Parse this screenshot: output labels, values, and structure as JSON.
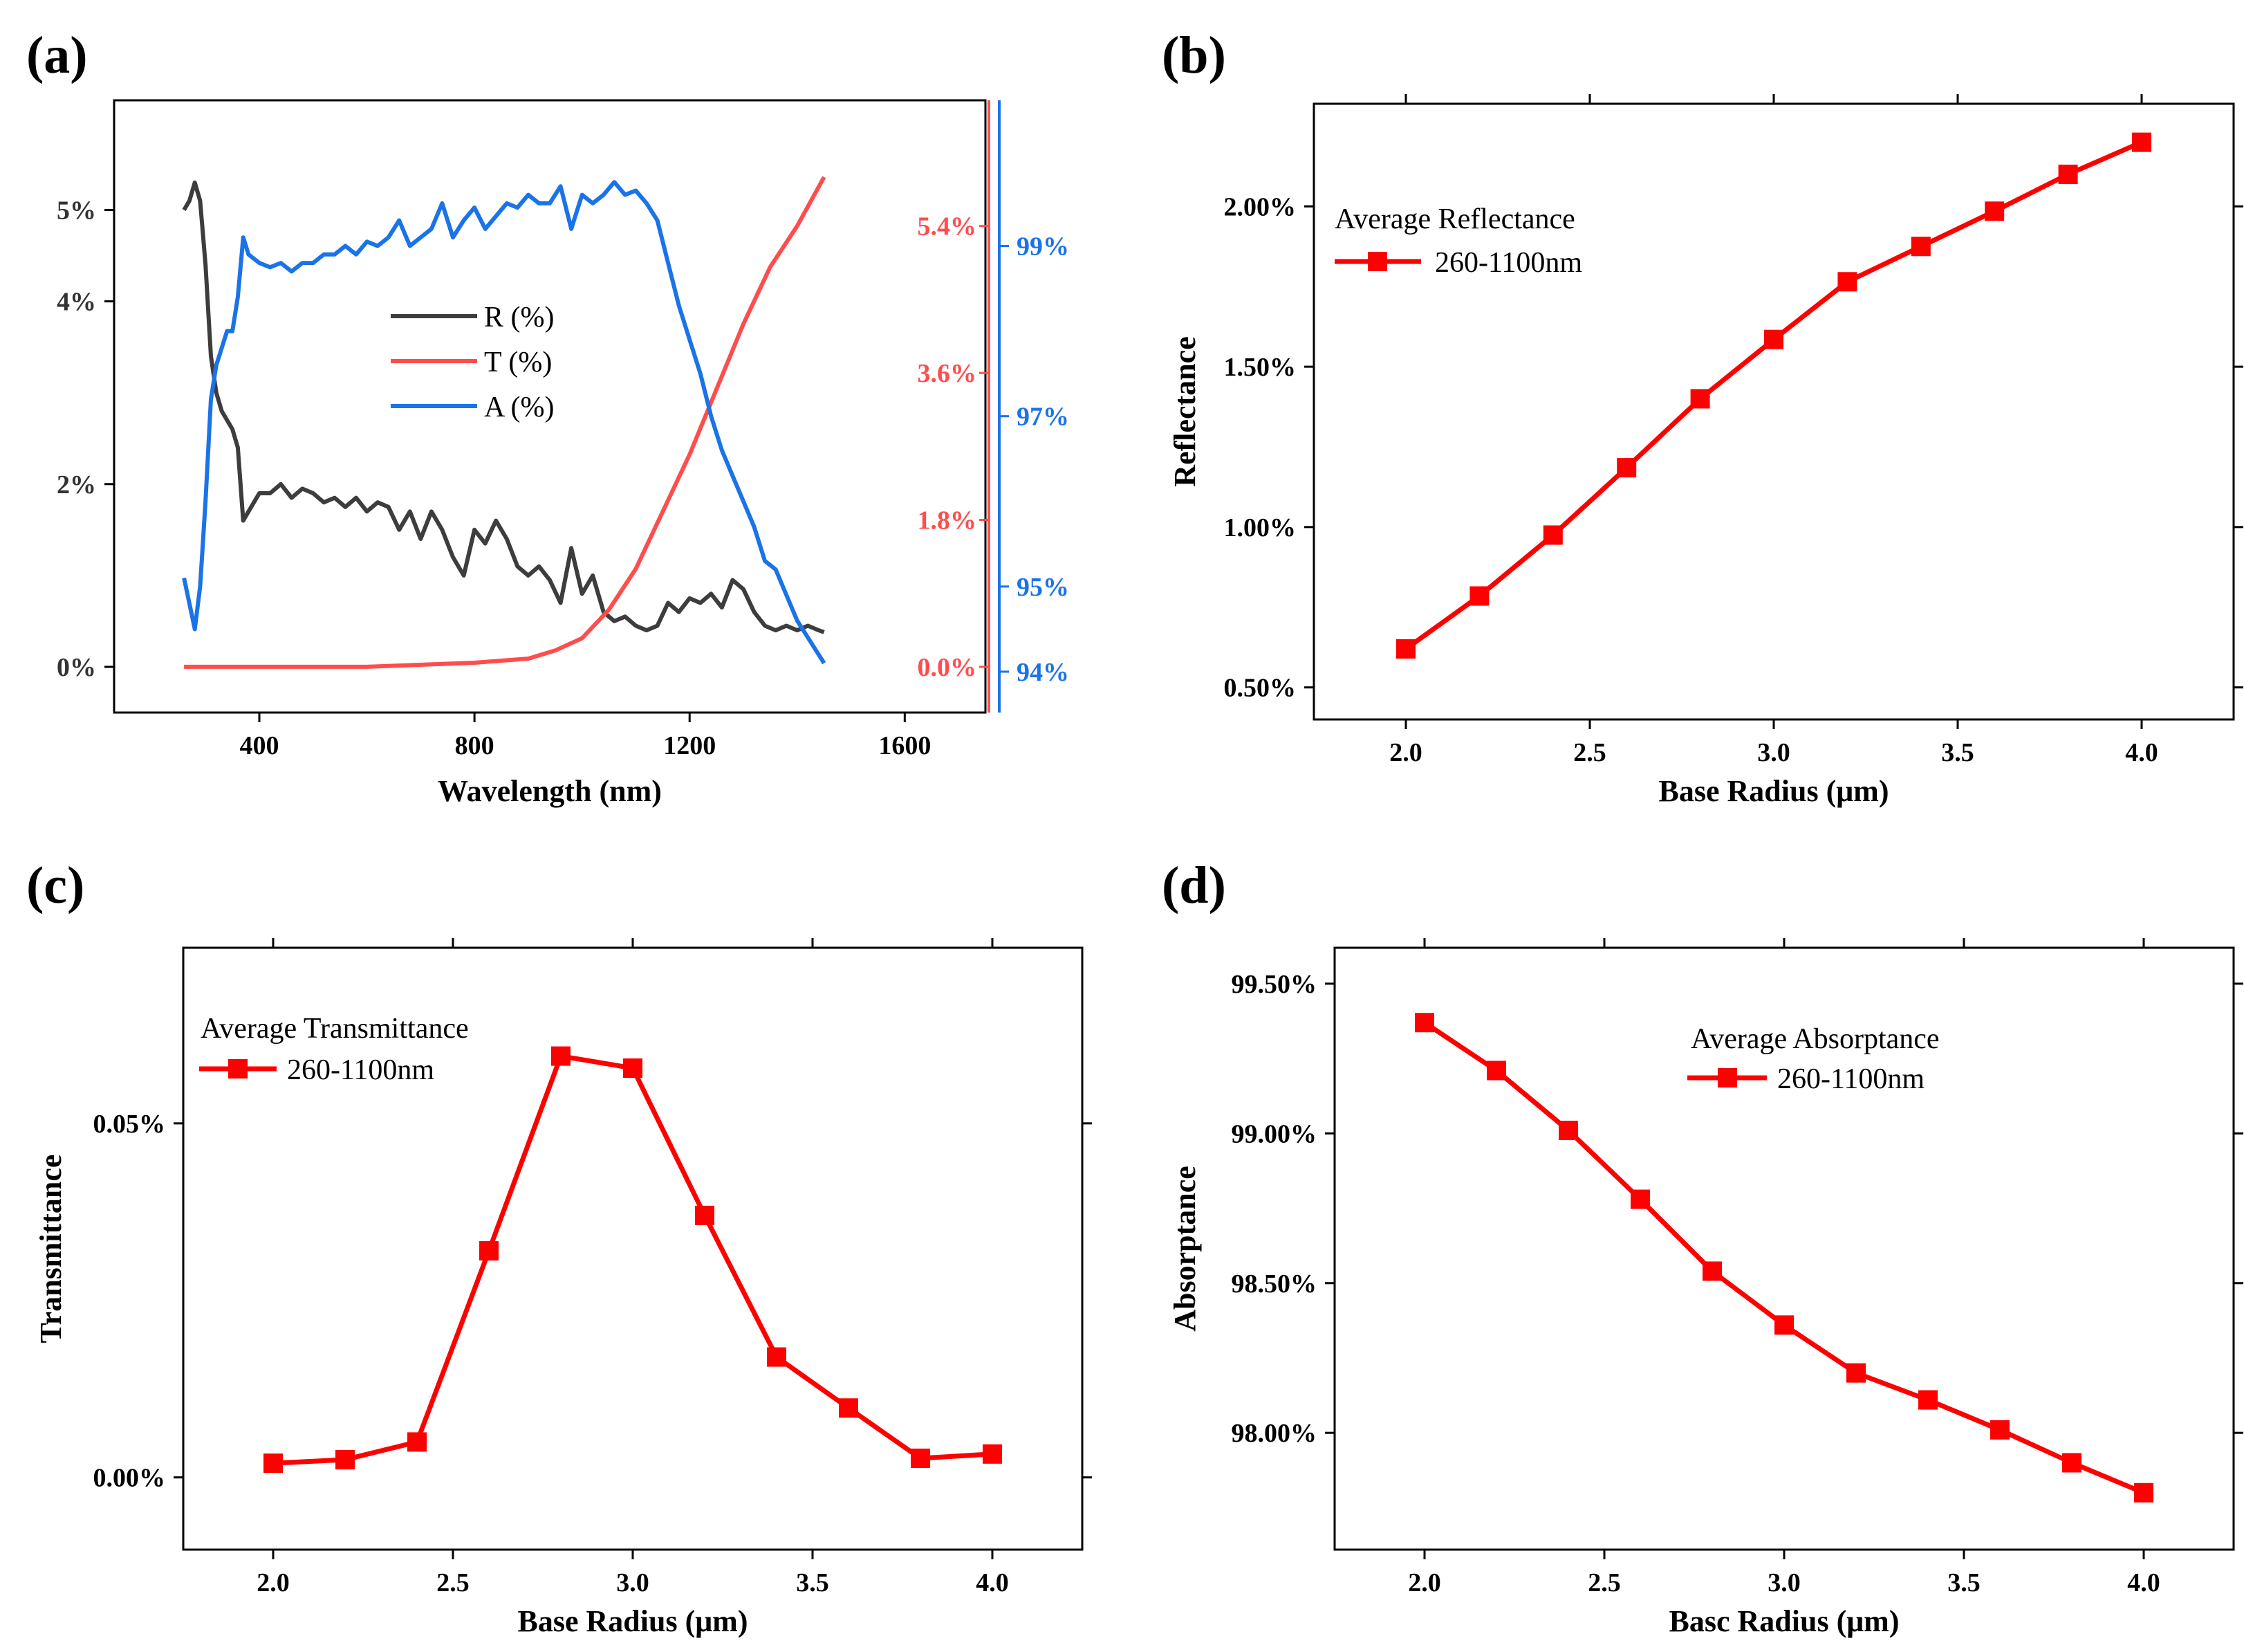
{
  "colors": {
    "reflectance": "#3d3d3d",
    "transmittance": "#ff4d4d",
    "absorptance": "#1a73e8",
    "marker_series": "#ff0000",
    "axis": "#000000"
  },
  "chart_data": [
    {
      "panel": "(a)",
      "type": "line",
      "xlabel": "Wavelength (nm)",
      "xlim": [
        130,
        1750
      ],
      "x_ticks": [
        "400",
        "800",
        "1200",
        "1600"
      ],
      "y_left": {
        "ylim": [
          -0.5,
          6.2
        ],
        "ticks": [
          "0%",
          "2%",
          "4%",
          "5%"
        ]
      },
      "y_right_red": {
        "ylim": [
          -0.56,
          6.94
        ],
        "ticks": [
          "0.0%",
          "1.8%",
          "3.6%",
          "5.4%"
        ]
      },
      "y_right_blue": {
        "ylim": [
          93.52,
          100.71
        ],
        "ticks": [
          "94%",
          "95%",
          "97%",
          "99%"
        ]
      },
      "legend": [
        "R (%)",
        "T (%)",
        "A (%)"
      ],
      "legend_position": "center",
      "series": [
        {
          "name": "R (%)",
          "axis": "left",
          "x": [
            260,
            270,
            280,
            290,
            300,
            310,
            320,
            330,
            340,
            350,
            360,
            370,
            380,
            400,
            420,
            440,
            460,
            480,
            500,
            520,
            540,
            560,
            580,
            600,
            620,
            640,
            660,
            680,
            700,
            720,
            740,
            760,
            780,
            800,
            820,
            840,
            860,
            880,
            900,
            920,
            940,
            960,
            980,
            1000,
            1020,
            1040,
            1060,
            1080,
            1100,
            1120,
            1140,
            1160,
            1180,
            1200,
            1220,
            1240,
            1260,
            1280,
            1300,
            1320,
            1340,
            1360,
            1380,
            1400,
            1420,
            1440,
            1450
          ],
          "values": [
            5.0,
            5.1,
            5.3,
            5.1,
            4.4,
            3.4,
            3.0,
            2.8,
            2.7,
            2.6,
            2.4,
            1.6,
            1.7,
            1.9,
            1.9,
            2.0,
            1.85,
            1.95,
            1.9,
            1.8,
            1.85,
            1.75,
            1.85,
            1.7,
            1.8,
            1.75,
            1.5,
            1.7,
            1.4,
            1.7,
            1.5,
            1.2,
            1.0,
            1.5,
            1.35,
            1.6,
            1.4,
            1.1,
            1.0,
            1.1,
            0.95,
            0.7,
            1.3,
            0.8,
            1.0,
            0.6,
            0.5,
            0.55,
            0.45,
            0.4,
            0.45,
            0.7,
            0.6,
            0.75,
            0.7,
            0.8,
            0.65,
            0.95,
            0.85,
            0.6,
            0.45,
            0.4,
            0.45,
            0.4,
            0.45,
            0.4,
            0.38
          ]
        },
        {
          "name": "T (%)",
          "axis": "right_red",
          "x": [
            260,
            400,
            600,
            800,
            900,
            950,
            1000,
            1050,
            1100,
            1150,
            1200,
            1250,
            1300,
            1350,
            1400,
            1450
          ],
          "values": [
            0.0,
            0.0,
            0.0,
            0.05,
            0.1,
            0.2,
            0.35,
            0.7,
            1.2,
            1.9,
            2.6,
            3.4,
            4.2,
            4.9,
            5.4,
            6.0
          ]
        },
        {
          "name": "A (%)",
          "axis": "right_blue",
          "x": [
            260,
            270,
            280,
            290,
            300,
            310,
            320,
            330,
            340,
            350,
            360,
            370,
            380,
            400,
            420,
            440,
            460,
            480,
            500,
            520,
            540,
            560,
            580,
            600,
            620,
            640,
            660,
            680,
            700,
            720,
            740,
            760,
            780,
            800,
            820,
            840,
            860,
            880,
            900,
            920,
            940,
            960,
            980,
            1000,
            1020,
            1040,
            1060,
            1080,
            1100,
            1120,
            1140,
            1160,
            1180,
            1200,
            1220,
            1240,
            1260,
            1280,
            1300,
            1320,
            1340,
            1360,
            1380,
            1400,
            1420,
            1440,
            1450
          ],
          "values": [
            95.1,
            94.8,
            94.5,
            95.0,
            96.0,
            97.2,
            97.6,
            97.8,
            98.0,
            98.0,
            98.4,
            99.1,
            98.9,
            98.8,
            98.75,
            98.8,
            98.7,
            98.8,
            98.8,
            98.9,
            98.9,
            99.0,
            98.9,
            99.05,
            99.0,
            99.1,
            99.3,
            99.0,
            99.1,
            99.2,
            99.5,
            99.1,
            99.3,
            99.45,
            99.2,
            99.35,
            99.5,
            99.45,
            99.6,
            99.5,
            99.5,
            99.7,
            99.2,
            99.6,
            99.5,
            99.6,
            99.75,
            99.6,
            99.65,
            99.5,
            99.3,
            98.8,
            98.3,
            97.9,
            97.5,
            97.0,
            96.6,
            96.3,
            96.0,
            95.7,
            95.3,
            95.2,
            94.9,
            94.6,
            94.4,
            94.2,
            94.1
          ]
        }
      ]
    },
    {
      "panel": "(b)",
      "type": "line",
      "xlabel": "Base Radius (μm)",
      "ylabel": "Reflectance",
      "xlim": [
        1.75,
        4.25
      ],
      "ylim": [
        0.4,
        2.32
      ],
      "x_ticks": [
        "2.0",
        "2.5",
        "3.0",
        "3.5",
        "4.0"
      ],
      "y_ticks": [
        "0.50%",
        "1.00%",
        "1.50%",
        "2.00%"
      ],
      "legend_title": "Average Reflectance",
      "legend": [
        "260-1100nm"
      ],
      "legend_position": "top-left",
      "series": [
        {
          "name": "260-1100nm",
          "x": [
            2.0,
            2.2,
            2.4,
            2.6,
            2.8,
            3.0,
            3.2,
            3.4,
            3.6,
            3.8,
            4.0
          ],
          "values": [
            0.62,
            0.785,
            0.975,
            1.185,
            1.4,
            1.585,
            1.765,
            1.875,
            1.985,
            2.1,
            2.2
          ]
        }
      ]
    },
    {
      "panel": "(c)",
      "type": "line",
      "xlabel": "Base Radius (μm)",
      "ylabel": "Transmittance",
      "xlim": [
        1.75,
        4.25
      ],
      "ylim": [
        -0.0102,
        0.0748
      ],
      "x_ticks": [
        "2.0",
        "2.5",
        "3.0",
        "3.5",
        "4.0"
      ],
      "y_ticks": [
        "0.00%",
        "0.05%"
      ],
      "legend_title": "Average Transmittance",
      "legend": [
        "260-1100nm"
      ],
      "legend_position": "top-left",
      "series": [
        {
          "name": "260-1100nm",
          "x": [
            2.0,
            2.2,
            2.4,
            2.6,
            2.8,
            3.0,
            3.2,
            3.4,
            3.6,
            3.8,
            4.0
          ],
          "values": [
            0.002,
            0.0025,
            0.005,
            0.032,
            0.0595,
            0.0578,
            0.037,
            0.017,
            0.0098,
            0.0027,
            0.0033
          ]
        }
      ]
    },
    {
      "panel": "(d)",
      "type": "line",
      "xlabel": "Basc Radius (μm)",
      "ylabel": "Absorptance",
      "xlim": [
        1.75,
        4.25
      ],
      "ylim": [
        97.61,
        99.62
      ],
      "x_ticks": [
        "2.0",
        "2.5",
        "3.0",
        "3.5",
        "4.0"
      ],
      "y_ticks": [
        "98.00%",
        "98.50%",
        "99.00%",
        "99.50%"
      ],
      "legend_title": "Average Absorptance",
      "legend": [
        "260-1100nm"
      ],
      "legend_position": "top-right",
      "series": [
        {
          "name": "260-1100nm",
          "x": [
            2.0,
            2.2,
            2.4,
            2.6,
            2.8,
            3.0,
            3.2,
            3.4,
            3.6,
            3.8,
            4.0
          ],
          "values": [
            99.37,
            99.21,
            99.01,
            98.78,
            98.54,
            98.36,
            98.2,
            98.11,
            98.01,
            97.9,
            97.8
          ]
        }
      ]
    }
  ]
}
